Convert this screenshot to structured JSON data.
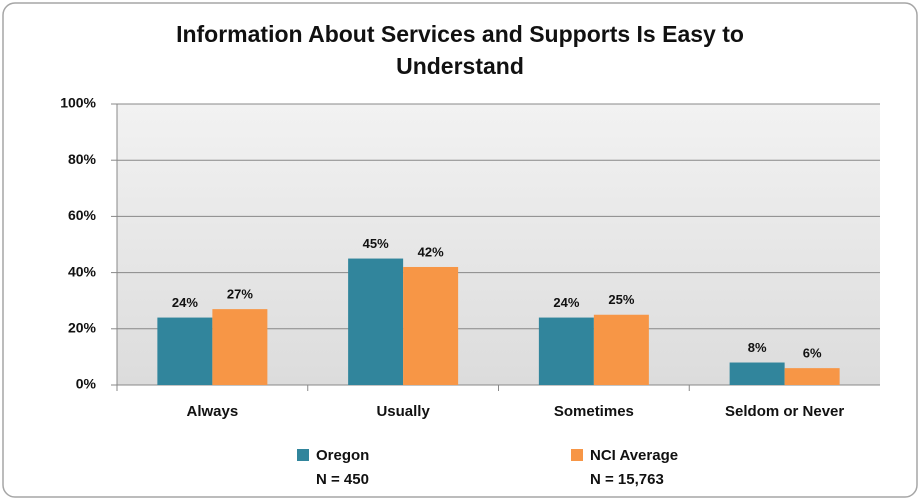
{
  "chart_data": {
    "type": "bar",
    "title": "Information About Services and Supports Is Easy to Understand",
    "categories": [
      "Always",
      "Usually",
      "Sometimes",
      "Seldom or Never"
    ],
    "series": [
      {
        "name": "Oregon",
        "note": "N = 450",
        "color": "#31859c",
        "values": [
          24,
          45,
          24,
          8
        ],
        "value_labels": [
          "24%",
          "45%",
          "24%",
          "8%"
        ]
      },
      {
        "name": "NCI Average",
        "note": "N = 15,763",
        "color": "#f79646",
        "values": [
          27,
          42,
          25,
          6
        ],
        "value_labels": [
          "27%",
          "42%",
          "25%",
          "6%"
        ]
      }
    ],
    "ylim": [
      0,
      100
    ],
    "yticks": [
      {
        "value": 0,
        "label": "0%"
      },
      {
        "value": 20,
        "label": "20%"
      },
      {
        "value": 40,
        "label": "40%"
      },
      {
        "value": 60,
        "label": "60%"
      },
      {
        "value": 80,
        "label": "80%"
      },
      {
        "value": 100,
        "label": "100%"
      }
    ],
    "grid": true,
    "legend": "bottom"
  }
}
